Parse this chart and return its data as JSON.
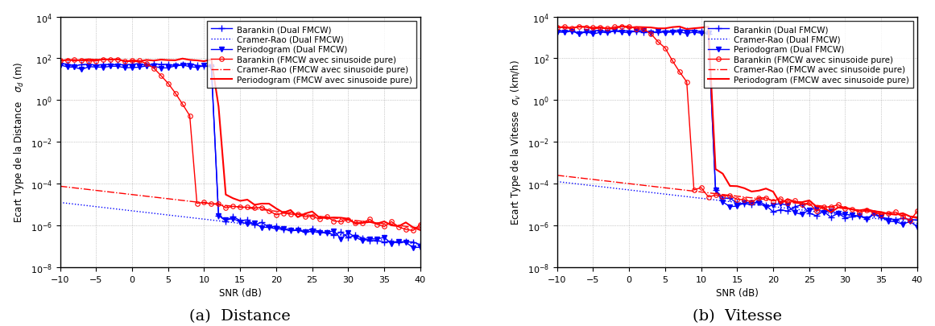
{
  "xlabel": "SNR (dB)",
  "ylabel_a": "Ecart Type de la Distance   $\\sigma_d$ (m)",
  "ylabel_b": "Ecart Type de la Vitesse  $\\sigma_v$ (km/h)",
  "subtitle_a": "(a)  Distance",
  "subtitle_b": "(b)  Vitesse",
  "ylim": [
    1e-08,
    10000.0
  ],
  "xlim": [
    -10,
    40
  ],
  "blue": "#0000FF",
  "red": "#FF0000",
  "legend_fontsize": 7.5,
  "axis_fontsize": 8.5,
  "subtitle_fontsize": 14,
  "tick_fontsize": 8,
  "lw": 1.0,
  "ms": 4,
  "legend_labels": [
    "Barankin (Dual FMCW)",
    "Cramer-Rao (Dual FMCW)",
    "Periodogram (Dual FMCW)",
    "Barankin (FMCW avec sinusoide pure)",
    "Cramer-Rao (FMCW avec sinusoide pure)",
    "Periodogram (FMCW avec sinusoide pure)"
  ]
}
